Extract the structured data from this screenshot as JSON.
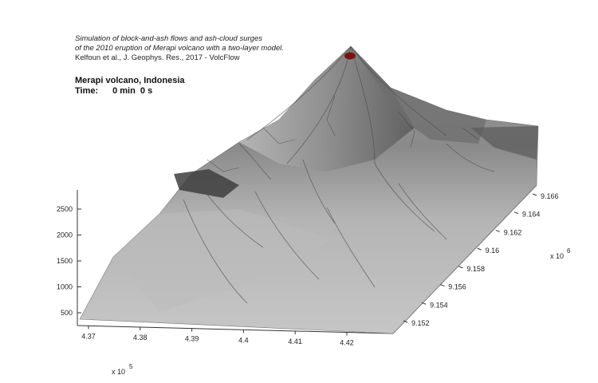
{
  "caption": {
    "line1": "Simulation of block-and-ash flows and ash-cloud surges",
    "line2": "of the 2010 eruption of Merapi volcano with a two-layer model.",
    "line3": "Kelfoun et al., J. Geophys. Res., 2017 - VolcFlow"
  },
  "header": {
    "title": "Merapi volcano, Indonesia",
    "time_label": "Time:",
    "time_value": "0 min  0 s"
  },
  "chart_data": {
    "type": "surface",
    "title": "Merapi volcano, Indonesia",
    "x_axis": {
      "ticks": [
        "4.37",
        "4.38",
        "4.39",
        "4.4",
        "4.41",
        "4.42"
      ],
      "multiplier": "x 10",
      "exponent": "5"
    },
    "y_axis": {
      "ticks": [
        "9.152",
        "9.154",
        "9.156",
        "9.158",
        "9.16",
        "9.162",
        "9.164",
        "9.166"
      ],
      "multiplier": "x 10",
      "exponent": "6"
    },
    "z_axis": {
      "ticks": [
        "500",
        "1000",
        "1500",
        "2000",
        "2500"
      ]
    },
    "xlim": [
      4.365,
      4.425
    ],
    "ylim": [
      9.151,
      9.167
    ],
    "zlim": [
      400,
      2900
    ],
    "summit": {
      "x": 4.4045,
      "y": 9.1655,
      "z": 2930
    },
    "grid": false,
    "colormap": "gray"
  },
  "colors": {
    "crater": "#7a1414",
    "terrain_light": "#c8c8c8",
    "terrain_dark": "#3a3a3a",
    "axis": "#333333"
  }
}
